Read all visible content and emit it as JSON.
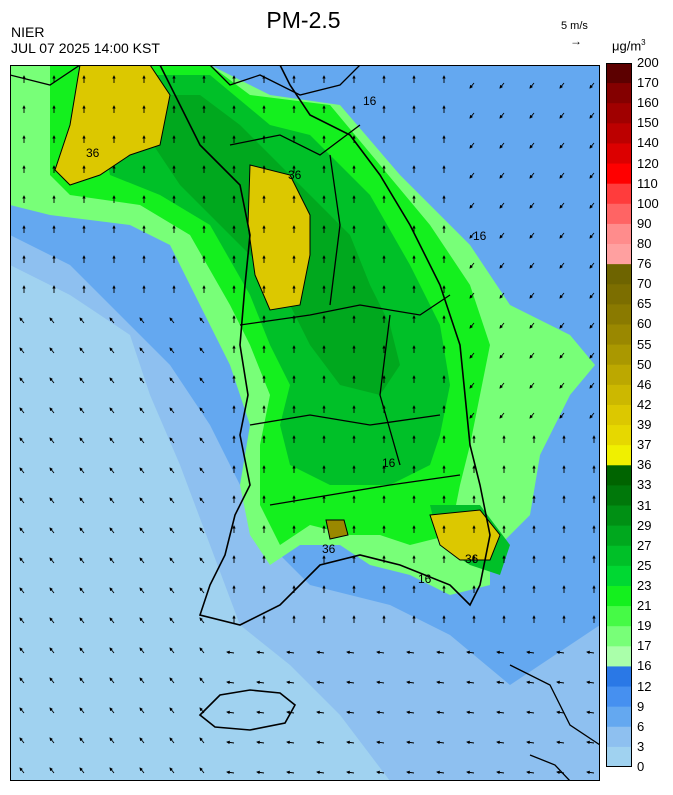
{
  "header": {
    "title": "PM-2.5",
    "agency": "NIER",
    "datetime": "JUL 07 2025 14:00 KST",
    "vector_scale": "5 m/s",
    "vector_arrow": "→",
    "unit": "μg/m",
    "unit_exp": "3"
  },
  "legend": {
    "labels": [
      "200",
      "170",
      "160",
      "150",
      "140",
      "120",
      "110",
      "100",
      "90",
      "80",
      "76",
      "70",
      "65",
      "60",
      "55",
      "50",
      "46",
      "42",
      "39",
      "37",
      "36",
      "33",
      "31",
      "29",
      "27",
      "25",
      "23",
      "21",
      "19",
      "17",
      "16",
      "12",
      "9",
      "6",
      "3",
      "0"
    ],
    "colors": [
      "#5c0000",
      "#840000",
      "#a00000",
      "#bc0000",
      "#dc0000",
      "#ff0000",
      "#ff3c3c",
      "#ff6464",
      "#ff8c8c",
      "#ffa0a0",
      "#6e6400",
      "#7c6e00",
      "#8a7a00",
      "#9a8800",
      "#aa9800",
      "#bca800",
      "#ccb800",
      "#dcc800",
      "#e6d800",
      "#f0f000",
      "#006400",
      "#00780a",
      "#009014",
      "#00a81e",
      "#00c028",
      "#00d832",
      "#14f01e",
      "#46fa46",
      "#78ff78",
      "#aaffaa",
      "#2a78e6",
      "#4690f0",
      "#64a8f0",
      "#8ec0f0",
      "#a0d2f0"
    ]
  },
  "map": {
    "contour_labels": [
      "36",
      "36",
      "36",
      "16",
      "16",
      "16",
      "16",
      "36"
    ],
    "wind_field": {
      "land": "north-flowing over west and south, south-flowing over east coast",
      "sea_west": "northwest"
    }
  }
}
